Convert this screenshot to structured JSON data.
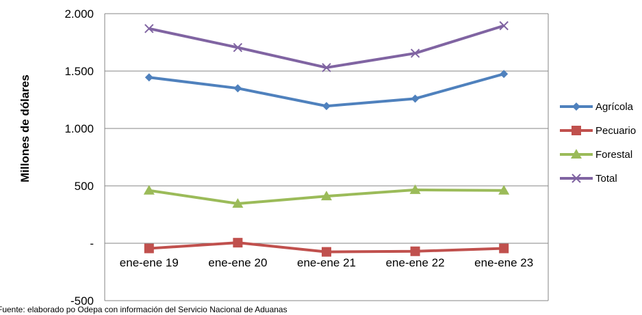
{
  "chart_data": {
    "type": "line",
    "categories": [
      "ene-ene 19",
      "ene-ene 20",
      "ene-ene 21",
      "ene-ene 22",
      "ene-ene 23"
    ],
    "ylabel": "Millones de dólares",
    "ylim": [
      -500,
      2000
    ],
    "yticks": [
      {
        "value": 2000,
        "label": "2.000"
      },
      {
        "value": 1500,
        "label": "1.500"
      },
      {
        "value": 1000,
        "label": "1.000"
      },
      {
        "value": 500,
        "label": "500"
      },
      {
        "value": 0,
        "label": "-"
      },
      {
        "value": -500,
        "label": "-500"
      }
    ],
    "grid": true,
    "legend_position": "right",
    "series": [
      {
        "name": "Agrícola",
        "values": [
          1445,
          1350,
          1195,
          1260,
          1475
        ],
        "color": "#4F81BD",
        "marker": "diamond"
      },
      {
        "name": "Pecuario",
        "values": [
          -45,
          5,
          -75,
          -70,
          -45
        ],
        "color": "#C0504D",
        "marker": "square"
      },
      {
        "name": "Forestal",
        "values": [
          460,
          345,
          410,
          465,
          460
        ],
        "color": "#9BBB59",
        "marker": "triangle"
      },
      {
        "name": "Total",
        "values": [
          1870,
          1705,
          1530,
          1655,
          1895
        ],
        "color": "#8064A2",
        "marker": "x"
      }
    ]
  },
  "footnote": "Fuente:  elaborado po Odepa con información del Servicio Nacional de Aduanas"
}
